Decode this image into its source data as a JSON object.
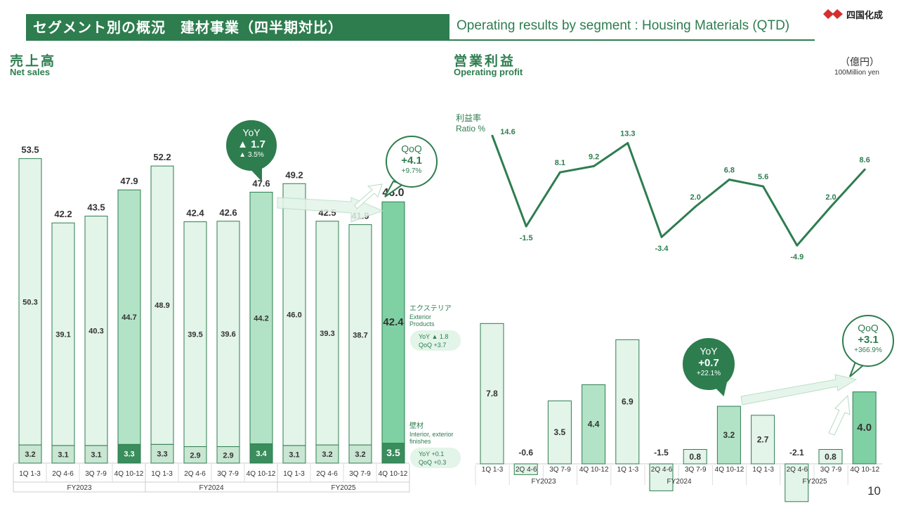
{
  "header": {
    "title_jp": "セグメント別の概況　建材事業（四半期対比）",
    "title_en": "Operating results by segment : Housing Materials (QTD)",
    "logo_text": "四国化成"
  },
  "left": {
    "title_jp": "売上高",
    "title_en": "Net sales"
  },
  "right": {
    "title_jp": "営業利益",
    "title_en": "Operating profit"
  },
  "unit": {
    "jp": "（億円）",
    "en": "100Million yen"
  },
  "page_number": "10",
  "colors": {
    "brand": "#2e7d4f",
    "light": "#e3f4e9",
    "mid": "#b2e3c6",
    "dark": "#7fd0a3",
    "bottom_light": "#c8e6d2",
    "bottom_dark": "#3a8d5c"
  },
  "chart_data": [
    {
      "type": "bar",
      "stacked": true,
      "categories": [
        "1Q 1-3",
        "2Q 4-6",
        "3Q 7-9",
        "4Q 10-12",
        "1Q 1-3",
        "2Q 4-6",
        "3Q 7-9",
        "4Q 10-12",
        "1Q 1-3",
        "2Q 4-6",
        "3Q 7-9",
        "4Q 10-12"
      ],
      "groups": [
        "FY2023",
        "FY2024",
        "FY2025"
      ],
      "series": [
        {
          "name": "壁材",
          "values": [
            3.2,
            3.1,
            3.1,
            3.3,
            3.3,
            2.9,
            2.9,
            3.4,
            3.1,
            3.2,
            3.2,
            3.5
          ]
        },
        {
          "name": "エクステリア",
          "values": [
            50.3,
            39.1,
            40.3,
            44.7,
            48.9,
            39.5,
            39.6,
            44.2,
            46.0,
            39.3,
            38.7,
            42.4
          ]
        }
      ],
      "totals": [
        53.5,
        42.2,
        43.5,
        47.9,
        52.2,
        42.4,
        42.6,
        47.6,
        49.2,
        42.5,
        41.9,
        46.0
      ],
      "legend": {
        "exterior": {
          "jp": "エクステリア",
          "en1": "Exterior",
          "en2": "Products",
          "yoy": "YoY ▲ 1.8",
          "qoq": "QoQ +3.7"
        },
        "wall": {
          "jp": "壁材",
          "en1": "Interior, exterior",
          "en2": "finishes",
          "yoy": "YoY +0.1",
          "qoq": "QoQ +0.3"
        }
      },
      "callouts": {
        "yoy": {
          "title": "YoY",
          "value": "▲ 1.7",
          "pct": "▲ 3.5%"
        },
        "qoq": {
          "title": "QoQ",
          "value": "+4.1",
          "pct": "+9.7%"
        }
      }
    },
    {
      "type": "line",
      "title": "利益率",
      "ylabel": "Ratio %",
      "values": [
        14.6,
        -1.5,
        8.1,
        9.2,
        13.3,
        -3.4,
        2.0,
        6.8,
        5.6,
        -4.9,
        2.0,
        8.6
      ],
      "labels": [
        "14.6",
        "-1.5",
        "8.1",
        "9.2",
        "13.3",
        "-3.4",
        "2.0",
        "6.8",
        "5.6",
        "-4.9",
        "2.0",
        "8.6"
      ]
    },
    {
      "type": "bar",
      "categories": [
        "1Q 1-3",
        "2Q 4-6",
        "3Q 7-9",
        "4Q 10-12",
        "1Q 1-3",
        "2Q 4-6",
        "3Q 7-9",
        "4Q 10-12",
        "1Q 1-3",
        "2Q 4-6",
        "3Q 7-9",
        "4Q 10-12"
      ],
      "groups": [
        "FY2023",
        "FY2024",
        "FY2025"
      ],
      "values": [
        7.8,
        -0.6,
        3.5,
        4.4,
        6.9,
        -1.5,
        0.8,
        3.2,
        2.7,
        -2.1,
        0.8,
        4.0
      ],
      "labels": [
        "7.8",
        "-0.6",
        "3.5",
        "4.4",
        "6.9",
        "-1.5",
        "0.8",
        "3.2",
        "2.7",
        "-2.1",
        "0.8",
        "4.0"
      ],
      "callouts": {
        "yoy": {
          "title": "YoY",
          "value": "+0.7",
          "pct": "+22.1%"
        },
        "qoq": {
          "title": "QoQ",
          "value": "+3.1",
          "pct": "+366.9%"
        }
      }
    }
  ]
}
